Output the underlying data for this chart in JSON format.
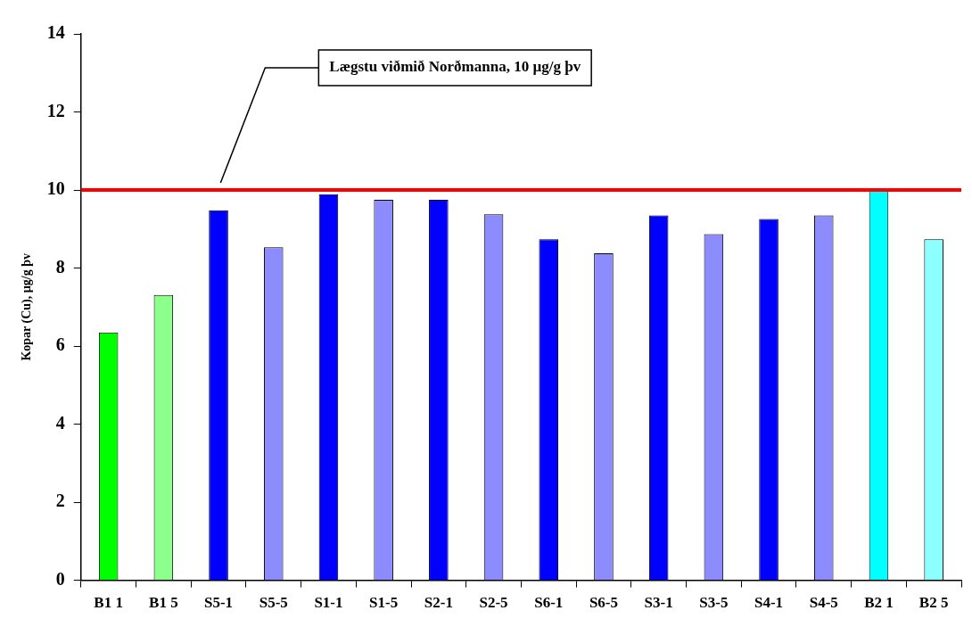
{
  "chart_data": {
    "type": "bar",
    "ylabel": "Kopar (Cu), µg/g þv",
    "categories": [
      "B1 1",
      "B1 5",
      "S5-1",
      "S5-5",
      "S1-1",
      "S1-5",
      "S2-1",
      "S2-5",
      "S6-1",
      "S6-5",
      "S3-1",
      "S3-5",
      "S4-1",
      "S4-5",
      "B2 1",
      "B2 5"
    ],
    "values": [
      6.35,
      7.31,
      9.48,
      8.53,
      9.89,
      9.75,
      9.75,
      9.38,
      8.74,
      8.38,
      9.35,
      8.87,
      9.26,
      9.35,
      10.0,
      8.74
    ],
    "colors": [
      "#00ff00",
      "#8cff8c",
      "#0000ff",
      "#8c8cff",
      "#0000ff",
      "#8c8cff",
      "#0000ff",
      "#8c8cff",
      "#0000ff",
      "#8c8cff",
      "#0000ff",
      "#8c8cff",
      "#0000ff",
      "#8c8cff",
      "#00ffff",
      "#8cffff"
    ],
    "ylim": [
      0,
      14
    ],
    "yticks": [
      0,
      2,
      4,
      6,
      8,
      10,
      12,
      14
    ],
    "grid": false,
    "legend": false,
    "ref_lines": [
      {
        "axis": "y",
        "value": 10,
        "label": "Lægstu viðmið Norðmanna, 10 µg/g þv",
        "color": "#ff0000",
        "line_style": "solid"
      }
    ]
  }
}
